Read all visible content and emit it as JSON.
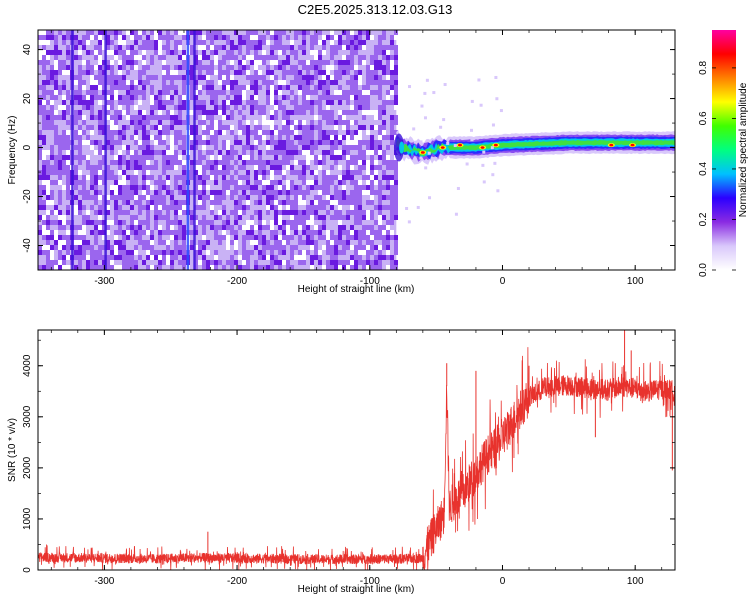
{
  "title": "C2E5.2025.313.12.03.G13",
  "colors": {
    "snr_line": "#e8322d",
    "cloud_light": "#c9b2f5",
    "cloud_mid": "#9b66ee",
    "cloud_dark": "#6a1ae0",
    "axes": "#000000"
  },
  "chart_data": [
    {
      "type": "heatmap",
      "name": "spectrogram",
      "xlabel": "Height of straight line (km)",
      "ylabel": "Frequency (Hz)",
      "xlim": [
        -350,
        130
      ],
      "ylim": [
        -50,
        48
      ],
      "xticks": [
        -300,
        -200,
        -100,
        0,
        100
      ],
      "yticks": [
        -40,
        -20,
        0,
        20,
        40
      ],
      "noise_region": {
        "x_from": -350,
        "x_to": -80,
        "y_from": -50,
        "y_to": 48
      },
      "signal_band": {
        "x_from": -80,
        "x_to": 130,
        "center_hz": [
          {
            "x": -78,
            "f": 0
          },
          {
            "x": -60,
            "f": -2
          },
          {
            "x": -45,
            "f": 0
          },
          {
            "x": -20,
            "f": 0
          },
          {
            "x": 0,
            "f": 1
          },
          {
            "x": 50,
            "f": 2
          },
          {
            "x": 130,
            "f": 2
          }
        ],
        "peaks": [
          {
            "x": -60,
            "f": -2
          },
          {
            "x": -45,
            "f": 0
          },
          {
            "x": -32,
            "f": 1
          },
          {
            "x": -15,
            "f": 0
          },
          {
            "x": -5,
            "f": 1
          },
          {
            "x": 82,
            "f": 1
          },
          {
            "x": 98,
            "f": 1
          }
        ]
      },
      "colorbar": {
        "label": "Normalized spectral amplitude",
        "range": [
          0,
          0.95
        ],
        "ticks": [
          "0.0",
          "0.2",
          "0.4",
          "0.6",
          "0.8"
        ],
        "stops": [
          "#ffffff",
          "#d9c8fb",
          "#8a2be2",
          "#2b00ff",
          "#00c0ff",
          "#00ff80",
          "#40ff00",
          "#ffff00",
          "#ff8000",
          "#ff0000",
          "#ff00a0"
        ]
      }
    },
    {
      "type": "line",
      "name": "snr",
      "xlabel": "Height of straight line (km)",
      "ylabel": "SNR (10 * v/v)",
      "xlim": [
        -350,
        130
      ],
      "ylim": [
        0,
        4700
      ],
      "xticks": [
        -300,
        -200,
        -100,
        0,
        100
      ],
      "yticks": [
        0,
        1000,
        2000,
        3000,
        4000
      ],
      "series": [
        {
          "x": [
            -350,
            -320,
            -290,
            -260,
            -230,
            -200,
            -170,
            -140,
            -110,
            -80,
            -60,
            -56,
            -52,
            -48,
            -44,
            -42,
            -40,
            -38,
            -35,
            -30,
            -25,
            -20,
            -15,
            -10,
            -5,
            0,
            5,
            10,
            15,
            20,
            25,
            30,
            40,
            50,
            60,
            70,
            80,
            90,
            100,
            110,
            120,
            130
          ],
          "y": [
            250,
            240,
            230,
            220,
            240,
            230,
            220,
            210,
            210,
            220,
            230,
            500,
            700,
            900,
            1100,
            3600,
            1200,
            1300,
            1400,
            1500,
            1700,
            1900,
            2100,
            2300,
            2400,
            2600,
            2800,
            3000,
            3200,
            3400,
            3450,
            3550,
            3600,
            3620,
            3580,
            3550,
            3520,
            3600,
            3550,
            3500,
            3550,
            3500
          ]
        }
      ],
      "spikes": [
        {
          "x": -222,
          "y": 750
        },
        {
          "x": -60,
          "y": 450
        },
        {
          "x": -42,
          "y": 4050
        },
        {
          "x": -20,
          "y": 3900
        },
        {
          "x": 20,
          "y": 4000
        },
        {
          "x": 92,
          "y": 4700
        },
        {
          "x": 97,
          "y": 4300
        },
        {
          "x": 70,
          "y": 2600
        },
        {
          "x": 128,
          "y": 1950
        }
      ]
    }
  ]
}
